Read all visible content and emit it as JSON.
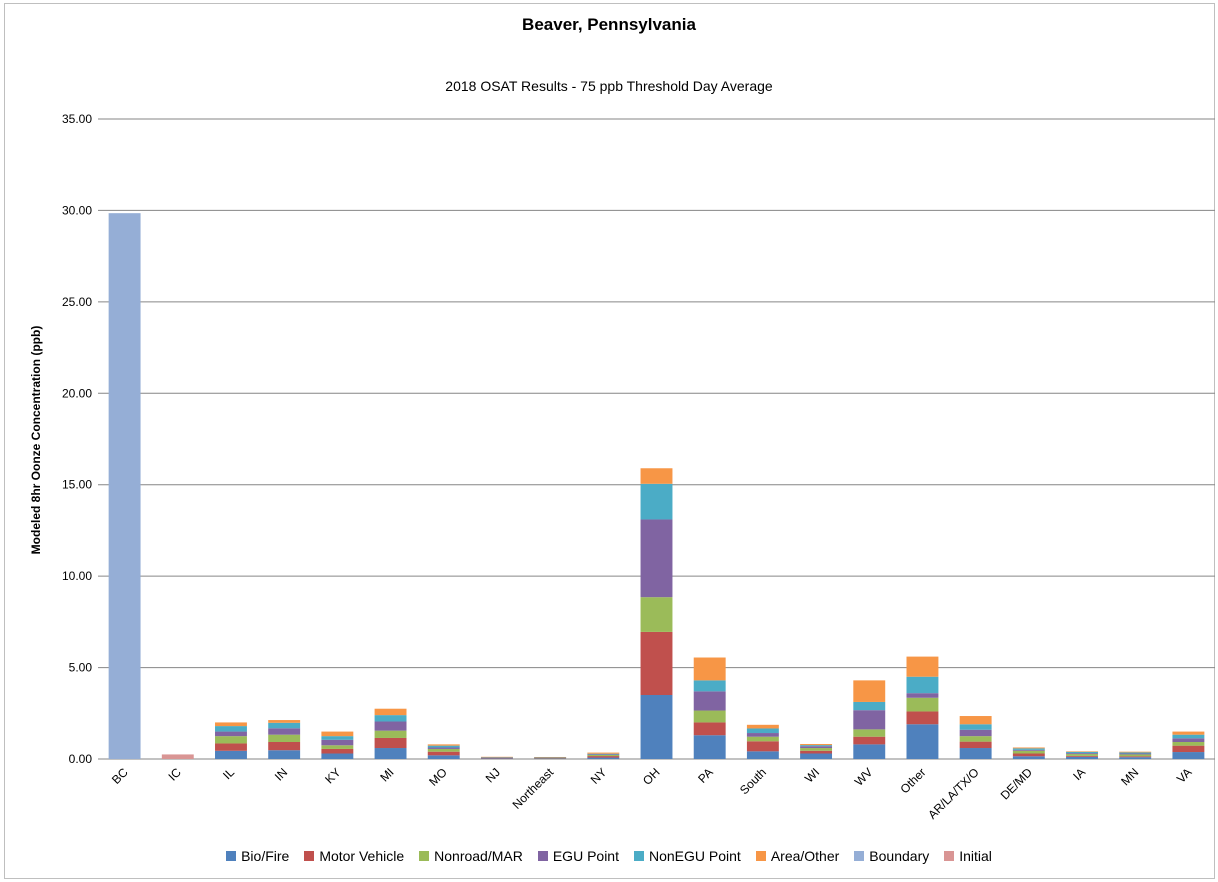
{
  "chart_data": {
    "type": "bar",
    "stacked": true,
    "title": "Beaver, Pennsylvania",
    "subtitle": "2018 OSAT Results - 75 ppb Threshold Day Average",
    "xlabel": "",
    "ylabel": "Modeled 8hr Oonze Concentration (ppb)",
    "ylim": [
      0,
      35
    ],
    "yticks": [
      "0.00",
      "5.00",
      "10.00",
      "15.00",
      "20.00",
      "25.00",
      "30.00",
      "35.00"
    ],
    "grid": true,
    "legend_position": "bottom",
    "categories": [
      "BC",
      "IC",
      "IL",
      "IN",
      "KY",
      "MI",
      "MO",
      "NJ",
      "Northeast",
      "NY",
      "OH",
      "PA",
      "South",
      "WI",
      "WV",
      "Other",
      "AR/LA/TX/O",
      "DE/MD",
      "IA",
      "MN",
      "VA"
    ],
    "series": [
      {
        "name": "Bio/Fire",
        "color": "#4f81bd",
        "values": [
          0,
          0,
          0.45,
          0.48,
          0.3,
          0.6,
          0.2,
          0.04,
          0.03,
          0.08,
          3.5,
          1.3,
          0.42,
          0.3,
          0.8,
          1.9,
          0.6,
          0.15,
          0.12,
          0.1,
          0.38
        ]
      },
      {
        "name": "Motor Vehicle",
        "color": "#c0504d",
        "values": [
          0,
          0,
          0.4,
          0.45,
          0.25,
          0.55,
          0.2,
          0.02,
          0.02,
          0.08,
          3.45,
          0.7,
          0.55,
          0.15,
          0.42,
          0.7,
          0.35,
          0.15,
          0.05,
          0.05,
          0.35
        ]
      },
      {
        "name": "Nonroad/MAR",
        "color": "#9bbb59",
        "values": [
          0,
          0,
          0.4,
          0.4,
          0.2,
          0.4,
          0.15,
          0.02,
          0.02,
          0.06,
          1.9,
          0.65,
          0.25,
          0.15,
          0.4,
          0.75,
          0.3,
          0.15,
          0.1,
          0.1,
          0.2
        ]
      },
      {
        "name": "EGU Point",
        "color": "#8064a2",
        "values": [
          0,
          0,
          0.25,
          0.35,
          0.3,
          0.5,
          0.08,
          0.01,
          0.01,
          0.03,
          4.25,
          1.05,
          0.2,
          0.1,
          1.05,
          0.25,
          0.35,
          0.05,
          0.05,
          0.05,
          0.2
        ]
      },
      {
        "name": "NonEGU Point",
        "color": "#4bacc6",
        "values": [
          0,
          0,
          0.3,
          0.3,
          0.2,
          0.35,
          0.1,
          0.01,
          0.01,
          0.04,
          1.95,
          0.6,
          0.25,
          0.06,
          0.45,
          0.9,
          0.3,
          0.08,
          0.07,
          0.06,
          0.2
        ]
      },
      {
        "name": "Area/Other",
        "color": "#f79646",
        "values": [
          0,
          0,
          0.2,
          0.15,
          0.25,
          0.35,
          0.07,
          0.02,
          0.02,
          0.06,
          0.85,
          1.25,
          0.2,
          0.06,
          1.18,
          1.1,
          0.45,
          0.05,
          0.03,
          0.04,
          0.17
        ]
      },
      {
        "name": "Boundary",
        "color": "#95aed6",
        "values": [
          29.85,
          0,
          0,
          0,
          0,
          0,
          0,
          0,
          0,
          0,
          0,
          0,
          0,
          0,
          0,
          0,
          0,
          0,
          0,
          0,
          0
        ]
      },
      {
        "name": "Initial",
        "color": "#d99594",
        "values": [
          0,
          0.25,
          0,
          0,
          0,
          0,
          0,
          0,
          0,
          0,
          0,
          0,
          0,
          0,
          0,
          0,
          0,
          0,
          0,
          0,
          0
        ]
      }
    ]
  }
}
